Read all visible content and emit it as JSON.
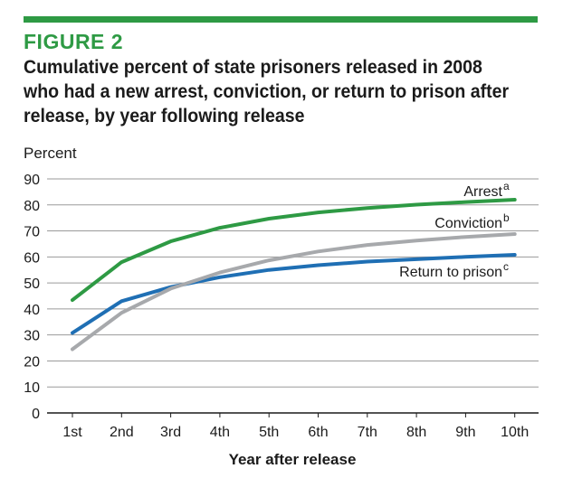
{
  "figure": {
    "label": "FIGURE 2",
    "title": "Cumulative percent of state prisoners released in 2008 who had a new arrest, conviction, or return to prison after release, by year following release"
  },
  "colors": {
    "accent": "#2e9a44",
    "arrest": "#2e9a44",
    "conviction": "#a7a9ac",
    "return": "#1f6fb4"
  },
  "chart_data": {
    "type": "line",
    "title": "Cumulative percent of state prisoners released in 2008 who had a new arrest, conviction, or return to prison after release, by year following release",
    "ylabel": "Percent",
    "xlabel": "Year after release",
    "categories": [
      "1st",
      "2nd",
      "3rd",
      "4th",
      "5th",
      "6th",
      "7th",
      "8th",
      "9th",
      "10th"
    ],
    "x_start_label": "0",
    "ylim": [
      0,
      90
    ],
    "yticks": [
      0,
      10,
      20,
      30,
      40,
      50,
      60,
      70,
      80,
      90
    ],
    "grid": true,
    "series": [
      {
        "key": "arrest",
        "name": "Arrest",
        "superscript": "a",
        "color": "#2e9a44",
        "values": [
          43.4,
          58.0,
          66.0,
          71.2,
          74.7,
          77.1,
          78.8,
          80.1,
          81.1,
          82.0
        ]
      },
      {
        "key": "conviction",
        "name": "Conviction",
        "superscript": "b",
        "color": "#a7a9ac",
        "values": [
          24.5,
          38.5,
          47.8,
          54.0,
          58.7,
          62.1,
          64.6,
          66.3,
          67.7,
          68.8
        ]
      },
      {
        "key": "return",
        "name": "Return to prison",
        "superscript": "c",
        "color": "#1f6fb4",
        "values": [
          30.8,
          43.0,
          48.4,
          52.2,
          55.0,
          56.8,
          58.2,
          59.1,
          60.0,
          60.8
        ]
      }
    ]
  }
}
